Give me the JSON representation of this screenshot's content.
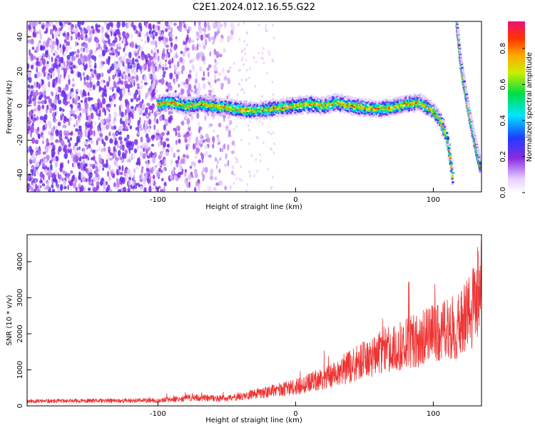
{
  "figure": {
    "title": "C2E1.2024.012.16.55.G22"
  },
  "chart_data": [
    {
      "type": "heatmap",
      "xlabel": "Height of straight line (km)",
      "ylabel": "Frequency (Hz)",
      "xlim": [
        -195,
        135
      ],
      "ylim": [
        -50,
        49
      ],
      "xticks": [
        -100,
        0,
        100
      ],
      "yticks": [
        -40,
        -20,
        0,
        20,
        40
      ],
      "colorbar": {
        "label": "Normalized spectral amplitude",
        "range": [
          0.0,
          0.95
        ],
        "ticks": [
          0.0,
          0.2,
          0.4,
          0.6,
          0.8
        ],
        "tick_labels": [
          "0.0",
          "0.2",
          "0.4",
          "0.6",
          "0.8"
        ],
        "placement": "right"
      },
      "ridge": {
        "x": [
          -100,
          -90,
          -80,
          -70,
          -60,
          -50,
          -40,
          -30,
          -20,
          -10,
          0,
          10,
          20,
          30,
          40,
          50,
          60,
          70,
          80,
          90,
          100,
          105,
          110,
          115
        ],
        "y": [
          1,
          2,
          0,
          1,
          0,
          -1,
          -2,
          -3,
          -2,
          -1,
          0,
          1,
          0,
          2,
          0,
          -1,
          -2,
          -1,
          1,
          2,
          -3,
          -8,
          -18,
          -45
        ]
      },
      "ridge2": {
        "x": [
          117,
          120,
          125,
          130,
          134
        ],
        "y": [
          49,
          25,
          0,
          -20,
          -35
        ]
      },
      "noise_region": {
        "x": [
          -195,
          -45
        ]
      }
    },
    {
      "type": "line",
      "xlabel": "Height of straight line (km)",
      "ylabel": "SNR (10 * v/v)",
      "xlim": [
        -195,
        135
      ],
      "ylim": [
        0,
        4750
      ],
      "xticks": [
        -100,
        0,
        100
      ],
      "yticks": [
        0,
        1000,
        2000,
        3000,
        4000
      ],
      "series": [
        {
          "color": "#ee3333",
          "x": [
            -195,
            -150,
            -100,
            -75,
            -50,
            -30,
            0,
            20,
            40,
            60,
            80,
            100,
            110,
            120,
            130,
            133
          ],
          "y": [
            130,
            140,
            150,
            230,
            200,
            330,
            520,
            760,
            1100,
            1450,
            1700,
            2000,
            2100,
            2250,
            2800,
            3300
          ]
        }
      ]
    }
  ]
}
